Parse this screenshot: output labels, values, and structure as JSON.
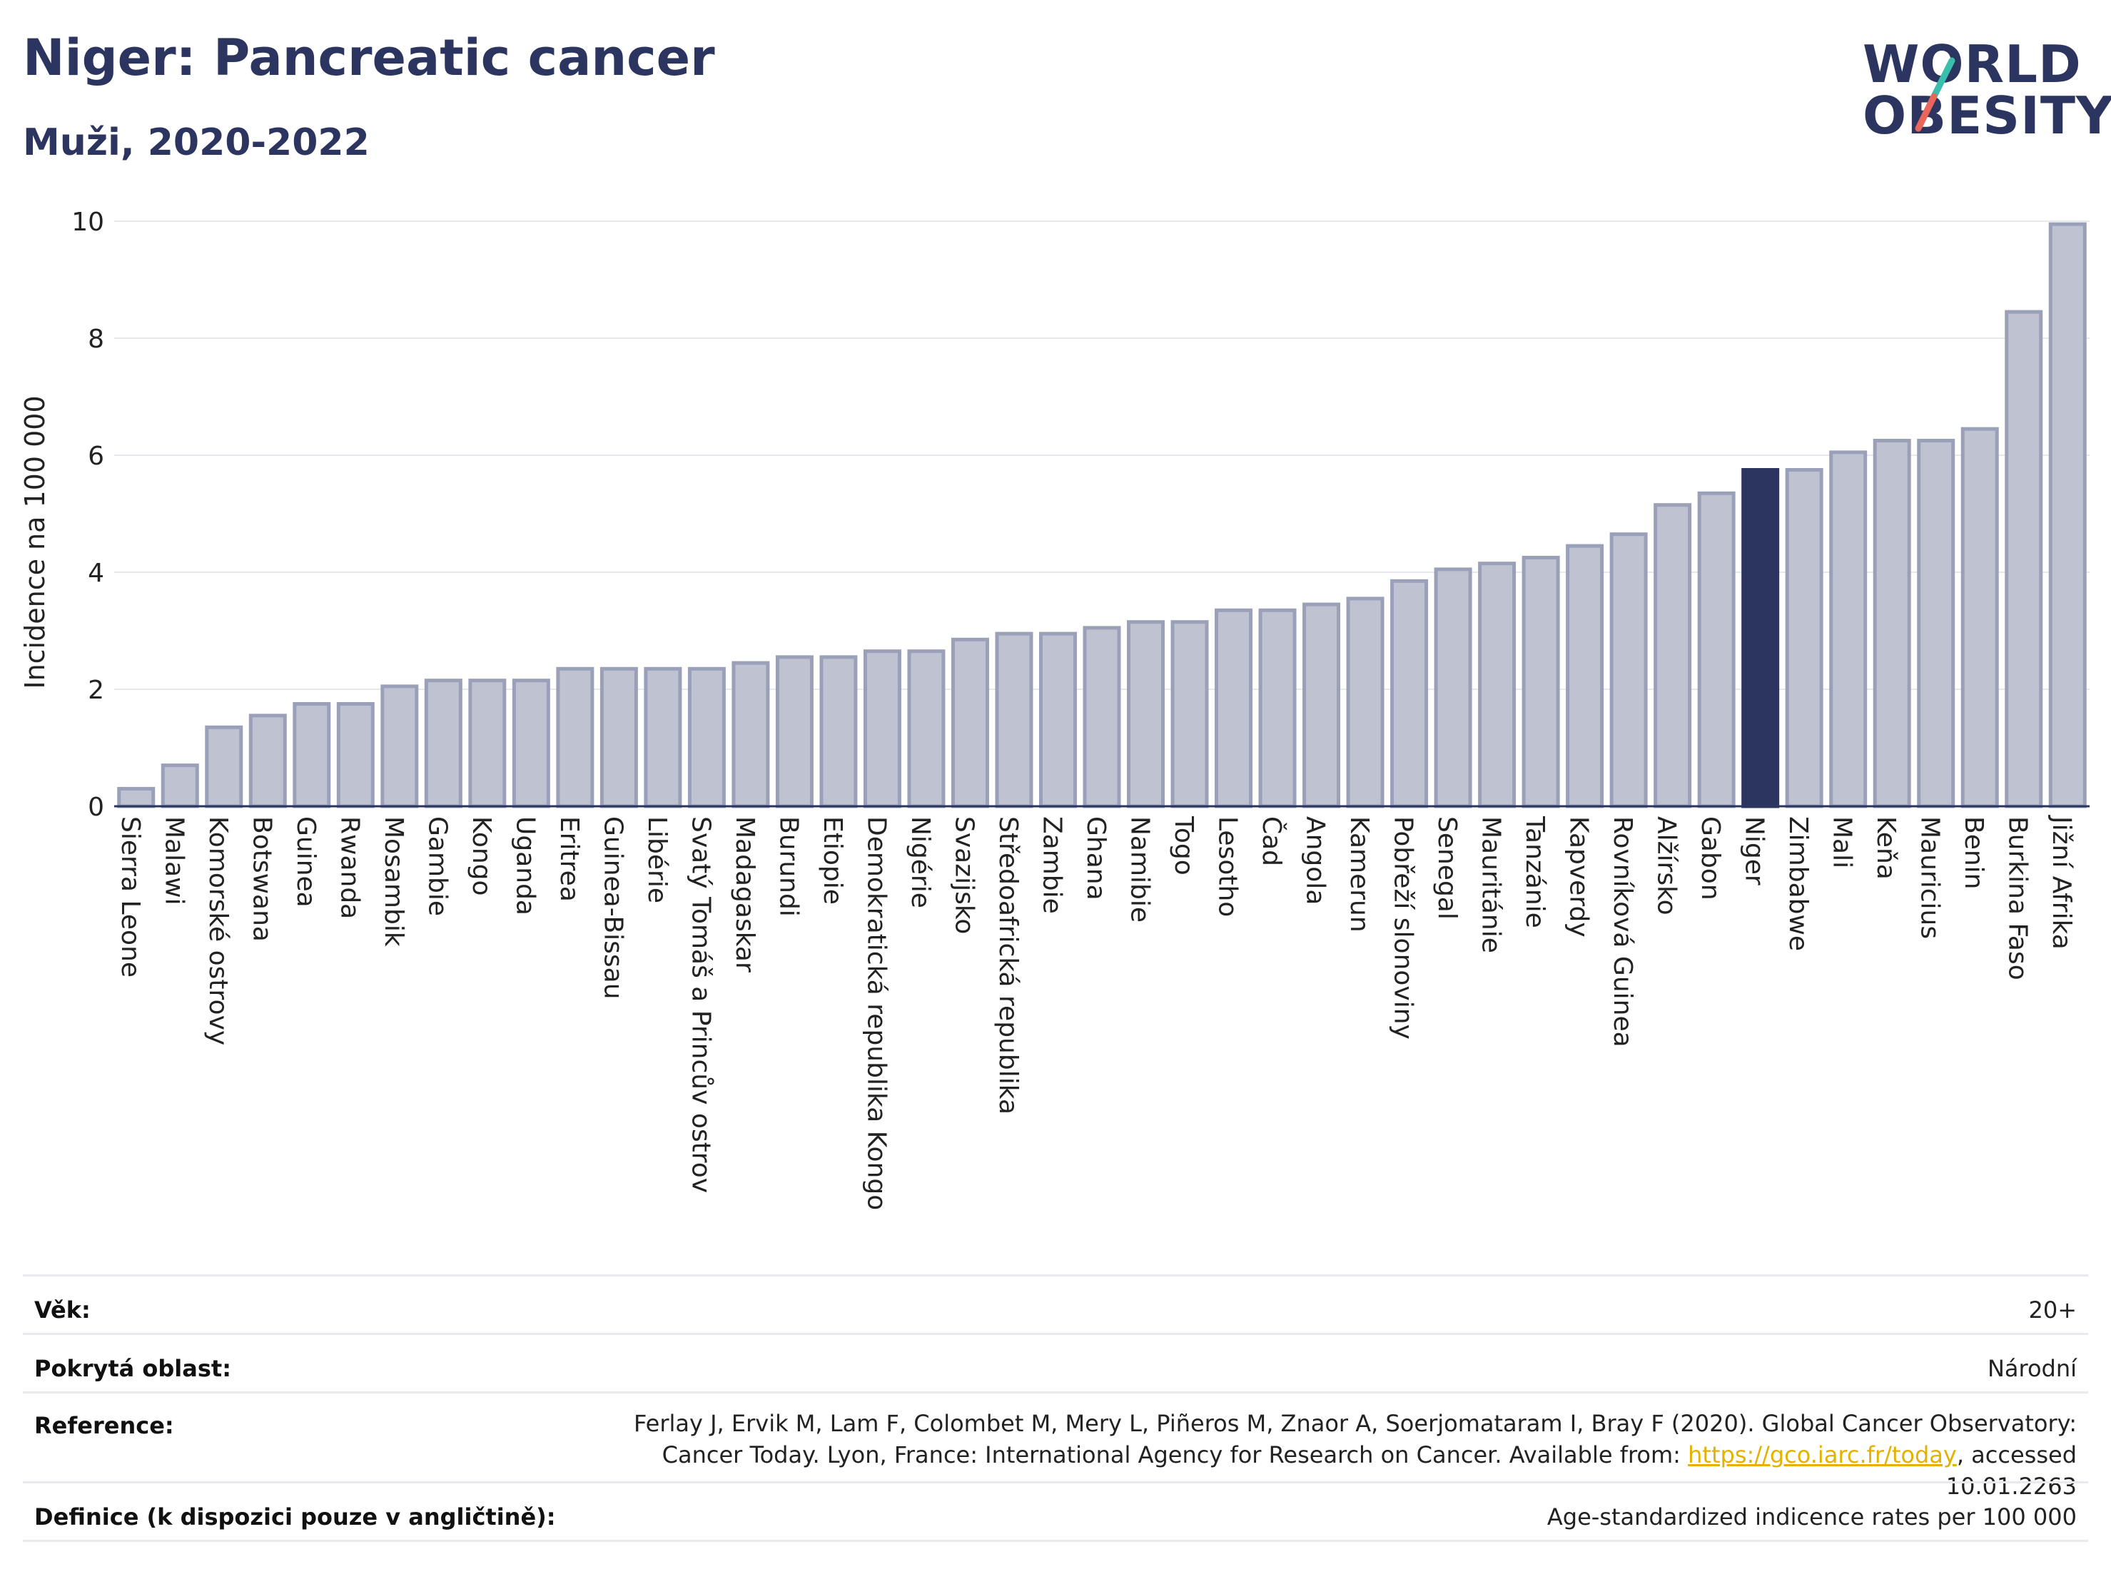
{
  "header": {
    "title": "Niger: Pancreatic cancer",
    "subtitle": "Muži, 2020-2022"
  },
  "logo": {
    "line1": "WORLD",
    "line2": "OBESITY",
    "slash_color_top": "#3bbfad",
    "slash_color_bottom": "#e8665a"
  },
  "colors": {
    "bar_fill": "#bfc3d1",
    "bar_stroke": "#9aa0b8",
    "highlight_fill": "#2b3560",
    "grid": "#e6e8ee"
  },
  "chart_data": {
    "type": "bar",
    "title": "Niger: Pancreatic cancer",
    "subtitle": "Muži, 2020-2022",
    "ylabel": "Incidence na 100 000",
    "xlabel": "",
    "ylim": [
      0,
      10
    ],
    "yticks": [
      0,
      2,
      4,
      6,
      8,
      10
    ],
    "grid": true,
    "highlight": "Niger",
    "categories": [
      "Sierra Leone",
      "Malawi",
      "Komorské ostrovy",
      "Botswana",
      "Guinea",
      "Rwanda",
      "Mosambik",
      "Gambie",
      "Kongo",
      "Uganda",
      "Eritrea",
      "Guinea-Bissau",
      "Libérie",
      "Svatý Tomáš a Princův ostrov",
      "Madagaskar",
      "Burundi",
      "Etiopie",
      "Demokratická republika Kongo",
      "Nigérie",
      "Svazijsko",
      "Středoafrická republika",
      "Zambie",
      "Ghana",
      "Namibie",
      "Togo",
      "Lesotho",
      "Čad",
      "Angola",
      "Kamerun",
      "Pobřeží slonoviny",
      "Senegal",
      "Mauritánie",
      "Tanzánie",
      "Kapverdy",
      "Rovníková Guinea",
      "Alžírsko",
      "Gabon",
      "Niger",
      "Zimbabwe",
      "Mali",
      "Keňa",
      "Mauricius",
      "Benin",
      "Burkina Faso",
      "Jižní Afrika"
    ],
    "values": [
      0.3,
      0.7,
      1.35,
      1.55,
      1.75,
      1.75,
      2.05,
      2.15,
      2.15,
      2.15,
      2.35,
      2.35,
      2.35,
      2.35,
      2.45,
      2.55,
      2.55,
      2.65,
      2.65,
      2.85,
      2.95,
      2.95,
      3.05,
      3.15,
      3.15,
      3.35,
      3.35,
      3.45,
      3.55,
      3.85,
      4.05,
      4.15,
      4.25,
      4.45,
      4.65,
      5.15,
      5.35,
      5.75,
      5.75,
      6.05,
      6.25,
      6.25,
      6.45,
      8.45,
      9.95
    ]
  },
  "info": {
    "age_label": "Věk:",
    "age_value": "20+",
    "area_label": "Pokrytá oblast:",
    "area_value": "Národní",
    "ref_label": "Reference:",
    "ref_text_1": "Ferlay J, Ervik M, Lam F, Colombet M, Mery L, Piñeros M, Znaor A, Soerjomataram I, Bray F (2020). Global Cancer Observatory: Cancer Today. Lyon, France: International Agency for Research on Cancer. Available from: ",
    "ref_link": "https://gco.iarc.fr/today",
    "ref_text_2": ", accessed 10.01.2263",
    "def_label": "Definice (k dispozici pouze v angličtině):",
    "def_value": "Age-standardized indicence rates per 100 000"
  }
}
